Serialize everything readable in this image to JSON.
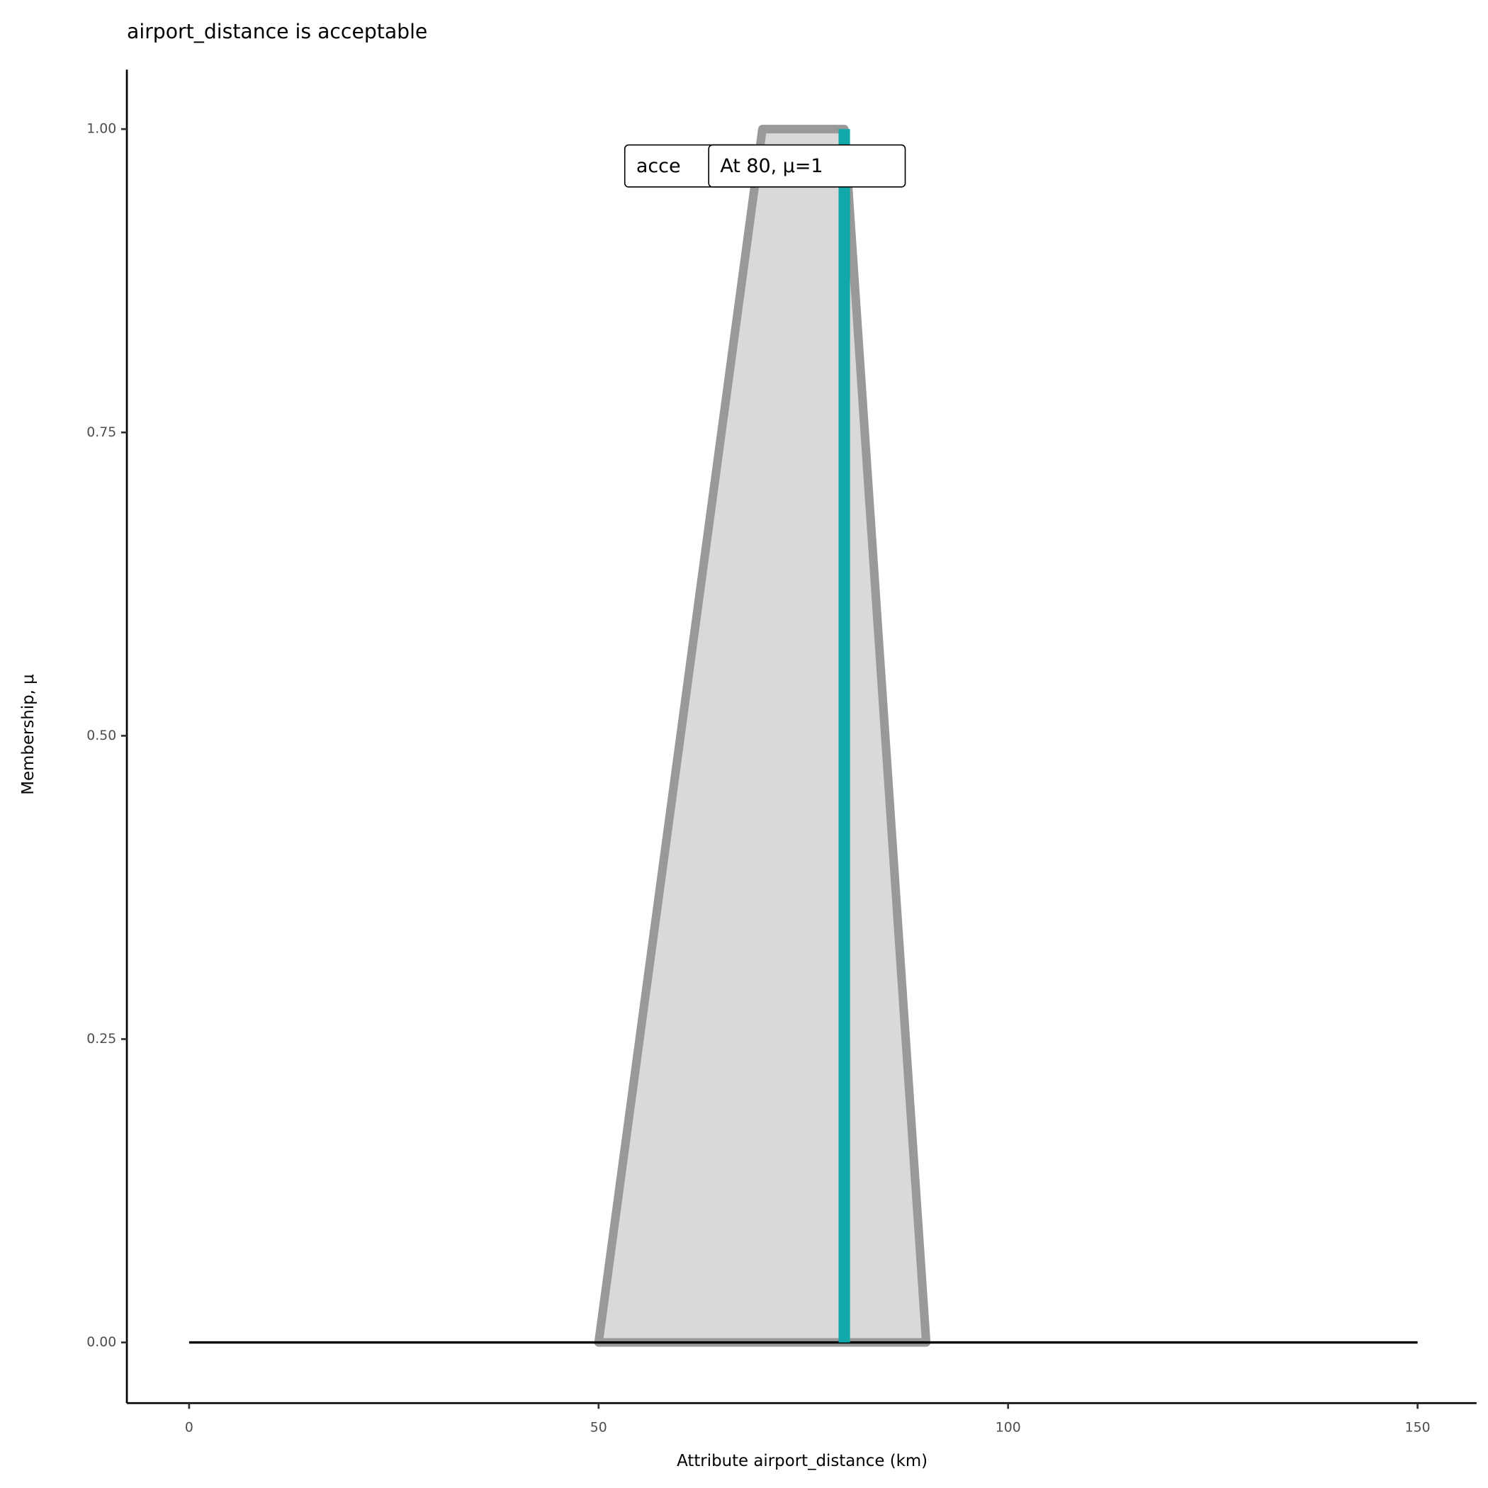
{
  "chart_data": {
    "type": "area",
    "title": "airport_distance is acceptable",
    "x_label": "Attribute airport_distance (km)",
    "y_label": "Membership, μ",
    "series": [
      {
        "x": [
          50,
          70,
          80,
          90
        ],
        "values": [
          0,
          1,
          1,
          0
        ],
        "color": "#999999",
        "fill": "#d9d9d9"
      }
    ],
    "baseline": {
      "x": [
        0,
        150
      ],
      "values": [
        0,
        0
      ],
      "color": "#000000"
    },
    "marker": {
      "x": 80,
      "values": [
        0,
        1
      ],
      "color": "#10a8a8"
    },
    "annotations": [
      "acce",
      "At 80, μ=1"
    ],
    "xlim": [
      -7.6,
      157.2
    ],
    "ylim": [
      -0.05,
      1.049
    ],
    "xticks": [
      0,
      50,
      100,
      150
    ],
    "yticks": [
      {
        "value": 0,
        "label": "0.00"
      },
      {
        "value": 0.25,
        "label": "0.25"
      },
      {
        "value": 0.5,
        "label": "0.50"
      },
      {
        "value": 0.75,
        "label": "0.75"
      },
      {
        "value": 1,
        "label": "1.00"
      }
    ]
  }
}
